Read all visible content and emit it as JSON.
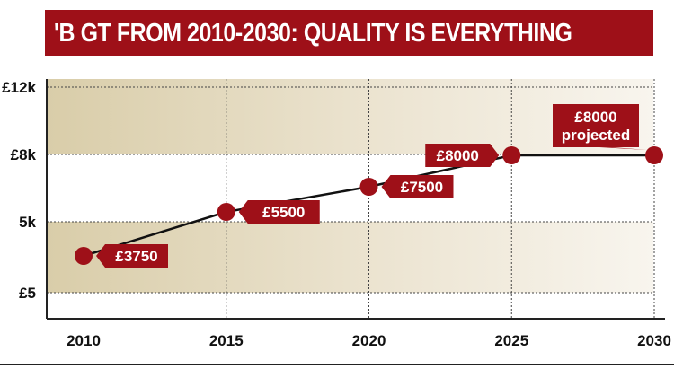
{
  "title": "'B GT FROM 2010-2030: QUALITY IS EVERYTHING",
  "colors": {
    "accent": "#9e1018",
    "band": "#e6dcc5",
    "axis": "#222222"
  },
  "chart_data": {
    "type": "line",
    "title": "'B GT FROM 2010-2030: QUALITY IS EVERYTHING",
    "xlabel": "",
    "ylabel": "",
    "x": [
      2010,
      2015,
      2020,
      2025,
      2030
    ],
    "x_ticks": [
      "2010",
      "2015",
      "2020",
      "2025",
      "2030"
    ],
    "y_ticks": [
      "£12k",
      "£8k",
      "5k",
      "£5"
    ],
    "series": [
      {
        "values": [
          3750,
          5500,
          7500,
          8000,
          8000
        ]
      }
    ],
    "data_labels": [
      "£3750",
      "£5500",
      "£7500",
      "£8000",
      "£8000 projected"
    ],
    "grid": true,
    "shaded_bands": true
  }
}
